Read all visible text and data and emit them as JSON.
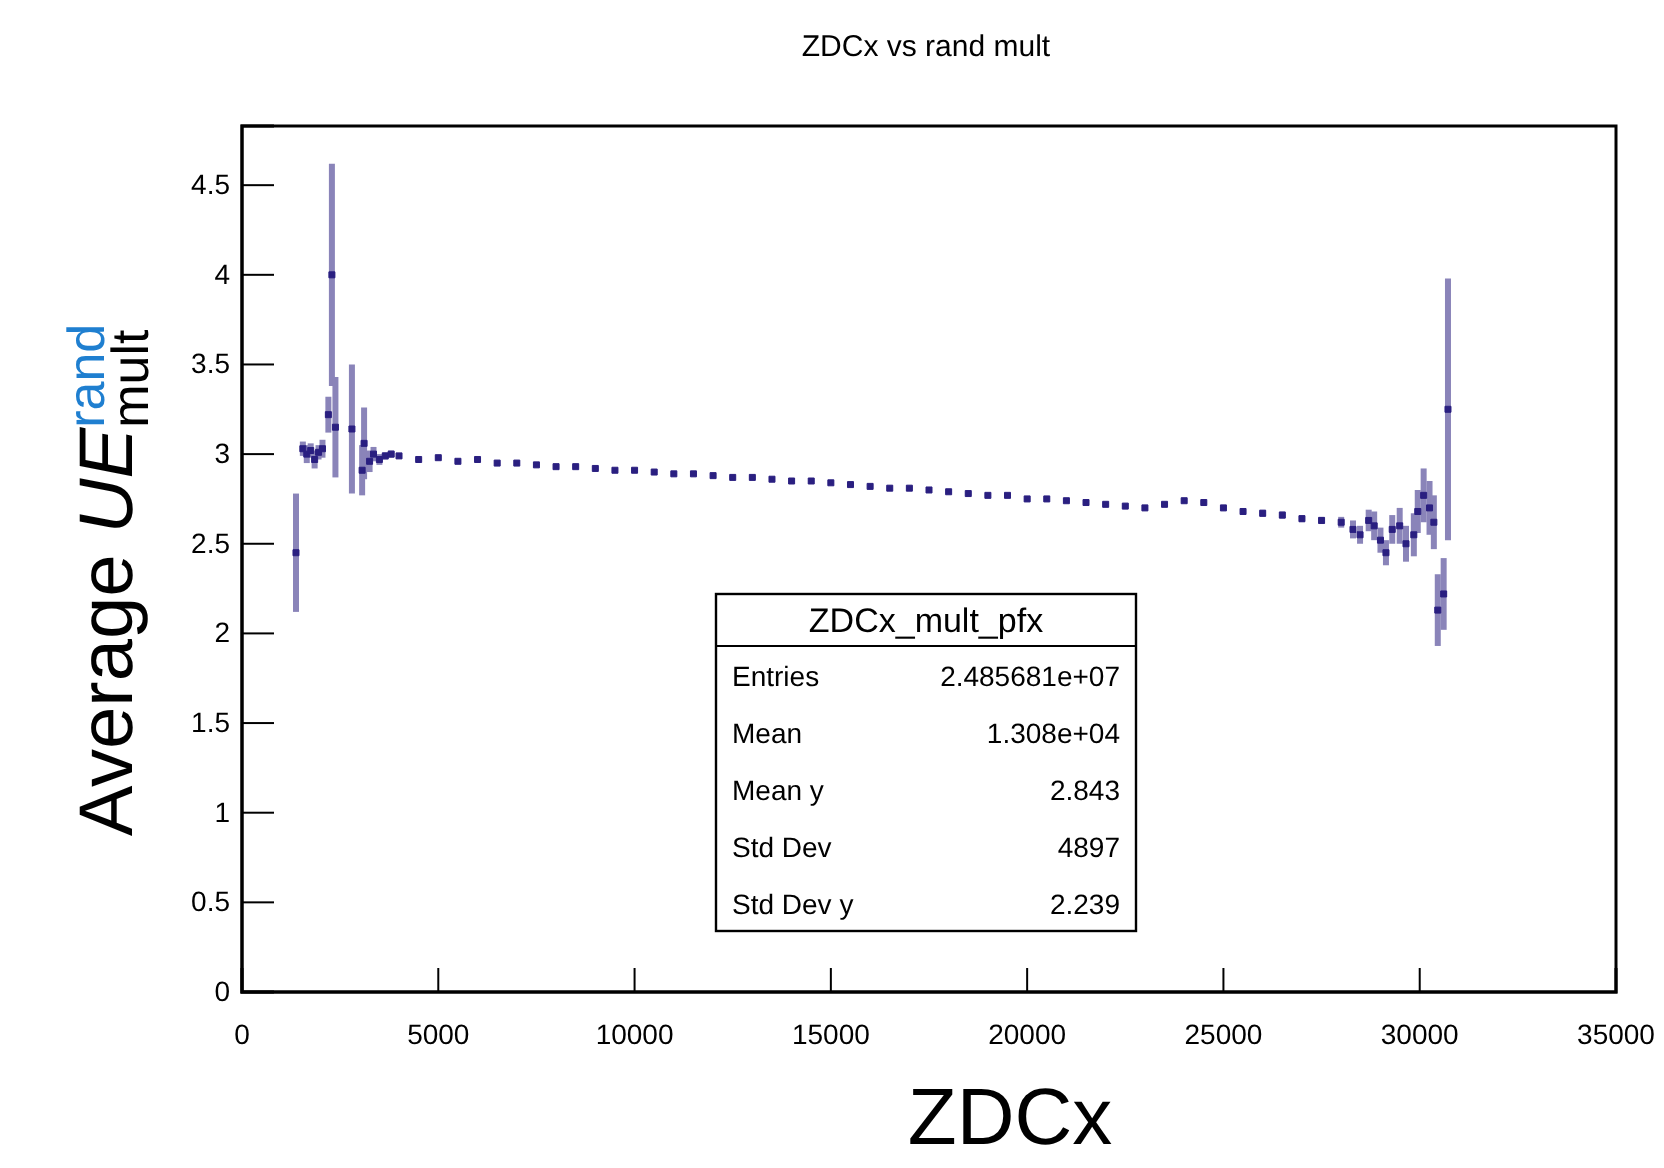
{
  "chart_data": {
    "type": "scatter",
    "title": "ZDCx vs rand mult",
    "xlabel": "ZDCx",
    "ylabel": "Average UE$^{rand}$$_{mult}$",
    "xlim": [
      0,
      35000
    ],
    "xticks": [
      0,
      5000,
      10000,
      15000,
      20000,
      25000,
      30000,
      35000
    ],
    "ylim": [
      0,
      4.83
    ],
    "yticks": [
      0,
      0.5,
      1,
      1.5,
      2,
      2.5,
      3,
      3.5,
      4,
      4.5
    ],
    "grid": false,
    "marker": "square",
    "annotations": [
      "ZDCx_mult_pfx",
      "Entries",
      "2.485681e+07",
      "Mean",
      "1.308e+04",
      "Mean y",
      "2.843",
      "Std Dev",
      "4897",
      "Std Dev y",
      "2.239"
    ],
    "series": [
      {
        "color": "#2a1f80",
        "x": [
          1375,
          1550,
          1650,
          1750,
          1850,
          1950,
          2050,
          2200,
          2290,
          2380,
          2800,
          3060,
          3110,
          3250,
          3350,
          3500,
          3650,
          3800,
          4000,
          4500,
          5000,
          5500,
          6000,
          6500,
          7000,
          7500,
          8000,
          8500,
          9000,
          9500,
          10000,
          10500,
          11000,
          11500,
          12000,
          12500,
          13000,
          13500,
          14000,
          14500,
          15000,
          15500,
          16000,
          16500,
          17000,
          17500,
          18000,
          18500,
          19000,
          19500,
          20000,
          20500,
          21000,
          21500,
          22000,
          22500,
          23000,
          23500,
          24000,
          24500,
          25000,
          25500,
          26000,
          26500,
          27000,
          27500,
          28000,
          28300,
          28480,
          28700,
          28840,
          29000,
          29140,
          29300,
          29490,
          29650,
          29850,
          29950,
          30100,
          30250,
          30360,
          30460,
          30610,
          30720
        ],
        "values": [
          2.45,
          3.03,
          3.0,
          3.02,
          2.97,
          3.01,
          3.03,
          3.22,
          4.0,
          3.15,
          3.14,
          2.91,
          3.06,
          2.96,
          3.0,
          2.97,
          2.99,
          3.0,
          2.99,
          2.97,
          2.98,
          2.96,
          2.97,
          2.95,
          2.95,
          2.94,
          2.93,
          2.93,
          2.92,
          2.91,
          2.91,
          2.9,
          2.89,
          2.89,
          2.88,
          2.87,
          2.87,
          2.86,
          2.85,
          2.85,
          2.84,
          2.83,
          2.82,
          2.81,
          2.81,
          2.8,
          2.79,
          2.78,
          2.77,
          2.77,
          2.75,
          2.75,
          2.74,
          2.73,
          2.72,
          2.71,
          2.7,
          2.72,
          2.74,
          2.73,
          2.7,
          2.68,
          2.67,
          2.66,
          2.64,
          2.63,
          2.62,
          2.58,
          2.55,
          2.63,
          2.6,
          2.52,
          2.45,
          2.58,
          2.6,
          2.5,
          2.55,
          2.68,
          2.77,
          2.7,
          2.62,
          2.13,
          2.22,
          3.25
        ],
        "errors": [
          0.33,
          0.04,
          0.05,
          0.04,
          0.05,
          0.04,
          0.05,
          0.1,
          0.62,
          0.28,
          0.36,
          0.14,
          0.2,
          0.06,
          0.04,
          0.03,
          0.02,
          0.02,
          0.01,
          0.01,
          0.01,
          0.01,
          0.01,
          0.01,
          0.01,
          0.01,
          0.01,
          0.01,
          0.01,
          0.01,
          0.01,
          0.01,
          0.01,
          0.01,
          0.01,
          0.01,
          0.01,
          0.01,
          0.01,
          0.01,
          0.01,
          0.01,
          0.01,
          0.01,
          0.01,
          0.01,
          0.01,
          0.01,
          0.01,
          0.01,
          0.01,
          0.01,
          0.01,
          0.01,
          0.01,
          0.01,
          0.01,
          0.01,
          0.01,
          0.01,
          0.01,
          0.01,
          0.02,
          0.02,
          0.02,
          0.02,
          0.03,
          0.05,
          0.05,
          0.06,
          0.08,
          0.07,
          0.07,
          0.08,
          0.1,
          0.1,
          0.12,
          0.12,
          0.15,
          0.15,
          0.15,
          0.2,
          0.2,
          0.73
        ]
      }
    ]
  }
}
